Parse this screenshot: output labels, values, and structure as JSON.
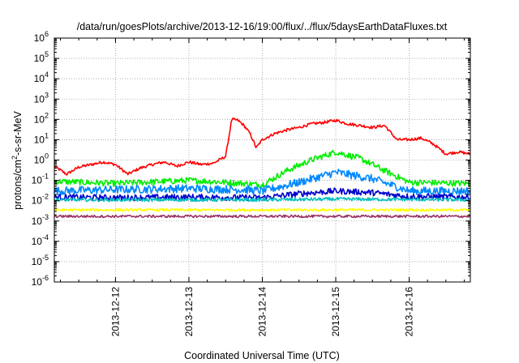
{
  "chart_data": {
    "type": "line",
    "title": "/data/run/goesPlots/archive/2013-12-16/19:00/flux/../flux/5daysEarthDataFluxes.txt",
    "xlabel": "Coordinated Universal Time (UTC)",
    "ylabel_parts": [
      "protons/cm",
      "2",
      "-s-sr-MeV"
    ],
    "y_scale": "log",
    "ylim_exponents": [
      -6,
      6
    ],
    "y_tick_labels": [
      {
        "base": "10",
        "exp": "6"
      },
      {
        "base": "10",
        "exp": "5"
      },
      {
        "base": "10",
        "exp": "4"
      },
      {
        "base": "10",
        "exp": "3"
      },
      {
        "base": "10",
        "exp": "2"
      },
      {
        "base": "10",
        "exp": "1"
      },
      {
        "base": "10",
        "exp": "0"
      },
      {
        "base": "10",
        "exp": "-1"
      },
      {
        "base": "10",
        "exp": "-2"
      },
      {
        "base": "10",
        "exp": "-3"
      },
      {
        "base": "10",
        "exp": "-4"
      },
      {
        "base": "10",
        "exp": "-5"
      },
      {
        "base": "10",
        "exp": "-6"
      }
    ],
    "xlim": [
      "2013-12-11 04:00",
      "2013-12-16 20:00"
    ],
    "x_ticks": [
      "2013-12-12",
      "2013-12-13",
      "2013-12-14",
      "2013-12-15",
      "2013-12-16"
    ],
    "grid": true,
    "legend": "none",
    "series": [
      {
        "color": "#ff0000",
        "noise": 0.07,
        "x": [
          "2013-12-11 04:00",
          "2013-12-11 08:00",
          "2013-12-11 12:00",
          "2013-12-11 16:00",
          "2013-12-11 20:00",
          "2013-12-12 00:00",
          "2013-12-12 04:00",
          "2013-12-12 08:00",
          "2013-12-12 12:00",
          "2013-12-12 16:00",
          "2013-12-12 20:00",
          "2013-12-13 00:00",
          "2013-12-13 04:00",
          "2013-12-13 08:00",
          "2013-12-13 12:00",
          "2013-12-13 14:00",
          "2013-12-13 16:00",
          "2013-12-13 18:00",
          "2013-12-13 20:00",
          "2013-12-13 22:00",
          "2013-12-14 00:00",
          "2013-12-14 04:00",
          "2013-12-14 08:00",
          "2013-12-14 12:00",
          "2013-12-14 16:00",
          "2013-12-14 20:00",
          "2013-12-15 00:00",
          "2013-12-15 04:00",
          "2013-12-15 08:00",
          "2013-12-15 12:00",
          "2013-12-15 16:00",
          "2013-12-15 20:00",
          "2013-12-16 00:00",
          "2013-12-16 04:00",
          "2013-12-16 08:00",
          "2013-12-16 12:00",
          "2013-12-16 16:00",
          "2013-12-16 20:00"
        ],
        "y": [
          0.5,
          0.2,
          0.45,
          0.6,
          0.8,
          0.6,
          0.2,
          0.4,
          0.6,
          0.8,
          0.5,
          0.8,
          0.6,
          0.7,
          1.5,
          100,
          90,
          50,
          20,
          4,
          10,
          20,
          30,
          40,
          60,
          70,
          90,
          60,
          50,
          40,
          50,
          10,
          10,
          12,
          6,
          2,
          2.5,
          2
        ]
      },
      {
        "color": "#00ee00",
        "noise": 0.15,
        "x": [
          "2013-12-11 04:00",
          "2013-12-12 00:00",
          "2013-12-13 00:00",
          "2013-12-13 12:00",
          "2013-12-13 18:00",
          "2013-12-14 00:00",
          "2013-12-14 08:00",
          "2013-12-14 16:00",
          "2013-12-15 00:00",
          "2013-12-15 08:00",
          "2013-12-15 16:00",
          "2013-12-16 00:00",
          "2013-12-16 20:00"
        ],
        "y": [
          0.09,
          0.07,
          0.1,
          0.08,
          0.07,
          0.06,
          0.3,
          1.0,
          2.5,
          1.2,
          0.3,
          0.08,
          0.07
        ]
      },
      {
        "color": "#0088ff",
        "noise": 0.2,
        "x": [
          "2013-12-11 04:00",
          "2013-12-12 00:00",
          "2013-12-13 00:00",
          "2013-12-13 18:00",
          "2013-12-14 00:00",
          "2013-12-14 12:00",
          "2013-12-15 00:00",
          "2013-12-15 12:00",
          "2013-12-16 00:00",
          "2013-12-16 20:00"
        ],
        "y": [
          0.03,
          0.035,
          0.04,
          0.035,
          0.03,
          0.08,
          0.25,
          0.12,
          0.03,
          0.03
        ]
      },
      {
        "color": "#0000cc",
        "noise": 0.15,
        "x": [
          "2013-12-11 04:00",
          "2013-12-12 00:00",
          "2013-12-13 00:00",
          "2013-12-14 00:00",
          "2013-12-14 12:00",
          "2013-12-15 00:00",
          "2013-12-15 12:00",
          "2013-12-16 00:00",
          "2013-12-16 20:00"
        ],
        "y": [
          0.015,
          0.014,
          0.015,
          0.014,
          0.022,
          0.03,
          0.025,
          0.016,
          0.015
        ]
      },
      {
        "color": "#00c0c0",
        "noise": 0.08,
        "x": [
          "2013-12-11 04:00",
          "2013-12-14 00:00",
          "2013-12-15 00:00",
          "2013-12-16 20:00"
        ],
        "y": [
          0.011,
          0.011,
          0.012,
          0.011
        ]
      },
      {
        "color": "#ffff00",
        "noise": 0.06,
        "x": [
          "2013-12-11 04:00",
          "2013-12-16 20:00"
        ],
        "y": [
          0.0035,
          0.0035
        ]
      },
      {
        "color": "#993366",
        "noise": 0.06,
        "x": [
          "2013-12-11 04:00",
          "2013-12-16 20:00"
        ],
        "y": [
          0.0017,
          0.0017
        ]
      }
    ]
  }
}
